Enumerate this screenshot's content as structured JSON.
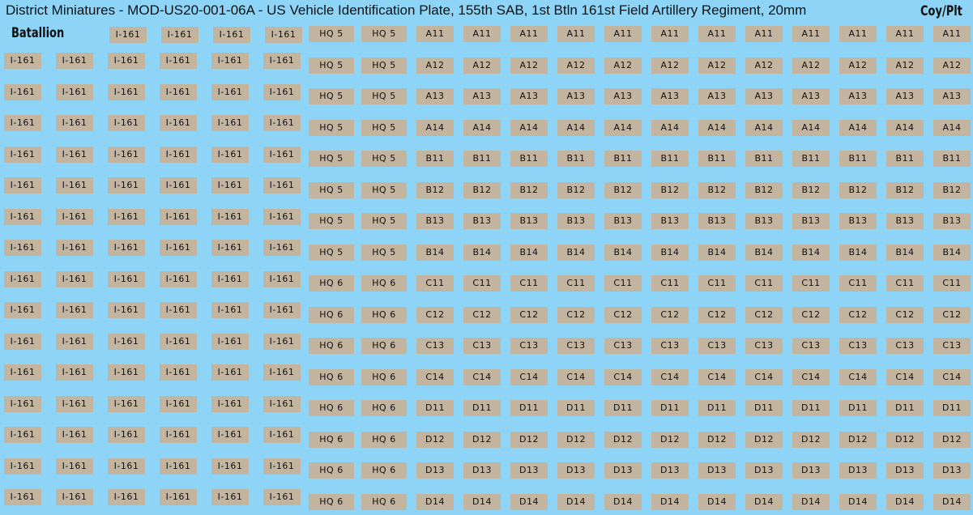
{
  "header": {
    "title": "District Miniatures - MOD-US20-001-06A - US Vehicle Identification Plate, 155th SAB, 1st Btln 161st Field Artillery Regiment, 20mm",
    "batallion_label": "Batallion",
    "coy_plt_label": "Coy/Plt"
  },
  "battalion_plates": {
    "rows": [
      [
        "I-161",
        "I-161",
        "I-161",
        "I-161"
      ],
      [
        "I-161",
        "I-161",
        "I-161",
        "I-161",
        "I-161",
        "I-161"
      ],
      [
        "I-161",
        "I-161",
        "I-161",
        "I-161",
        "I-161",
        "I-161"
      ],
      [
        "I-161",
        "I-161",
        "I-161",
        "I-161",
        "I-161",
        "I-161"
      ],
      [
        "I-161",
        "I-161",
        "I-161",
        "I-161",
        "I-161",
        "I-161"
      ],
      [
        "I-161",
        "I-161",
        "I-161",
        "I-161",
        "I-161",
        "I-161"
      ],
      [
        "I-161",
        "I-161",
        "I-161",
        "I-161",
        "I-161",
        "I-161"
      ],
      [
        "I-161",
        "I-161",
        "I-161",
        "I-161",
        "I-161",
        "I-161"
      ],
      [
        "I-161",
        "I-161",
        "I-161",
        "I-161",
        "I-161",
        "I-161"
      ],
      [
        "I-161",
        "I-161",
        "I-161",
        "I-161",
        "I-161",
        "I-161"
      ],
      [
        "I-161",
        "I-161",
        "I-161",
        "I-161",
        "I-161",
        "I-161"
      ],
      [
        "I-161",
        "I-161",
        "I-161",
        "I-161",
        "I-161",
        "I-161"
      ],
      [
        "I-161",
        "I-161",
        "I-161",
        "I-161",
        "I-161",
        "I-161"
      ],
      [
        "I-161",
        "I-161",
        "I-161",
        "I-161",
        "I-161",
        "I-161"
      ],
      [
        "I-161",
        "I-161",
        "I-161",
        "I-161",
        "I-161",
        "I-161"
      ],
      [
        "I-161",
        "I-161",
        "I-161",
        "I-161",
        "I-161",
        "I-161"
      ]
    ]
  },
  "company_plates": {
    "rows": [
      {
        "hq": [
          "HQ 5",
          "HQ 5"
        ],
        "plates": [
          "A11",
          "A11",
          "A11",
          "A11",
          "A11",
          "A11",
          "A11",
          "A11",
          "A11",
          "A11",
          "A11",
          "A11"
        ]
      },
      {
        "hq": [
          "HQ 5",
          "HQ 5"
        ],
        "plates": [
          "A12",
          "A12",
          "A12",
          "A12",
          "A12",
          "A12",
          "A12",
          "A12",
          "A12",
          "A12",
          "A12",
          "A12"
        ]
      },
      {
        "hq": [
          "HQ 5",
          "HQ 5"
        ],
        "plates": [
          "A13",
          "A13",
          "A13",
          "A13",
          "A13",
          "A13",
          "A13",
          "A13",
          "A13",
          "A13",
          "A13",
          "A13"
        ]
      },
      {
        "hq": [
          "HQ 5",
          "HQ 5"
        ],
        "plates": [
          "A14",
          "A14",
          "A14",
          "A14",
          "A14",
          "A14",
          "A14",
          "A14",
          "A14",
          "A14",
          "A14",
          "A14"
        ]
      },
      {
        "hq": [
          "HQ 5",
          "HQ 5"
        ],
        "plates": [
          "B11",
          "B11",
          "B11",
          "B11",
          "B11",
          "B11",
          "B11",
          "B11",
          "B11",
          "B11",
          "B11",
          "B11"
        ]
      },
      {
        "hq": [
          "HQ 5",
          "HQ 5"
        ],
        "plates": [
          "B12",
          "B12",
          "B12",
          "B12",
          "B12",
          "B12",
          "B12",
          "B12",
          "B12",
          "B12",
          "B12",
          "B12"
        ]
      },
      {
        "hq": [
          "HQ 5",
          "HQ 5"
        ],
        "plates": [
          "B13",
          "B13",
          "B13",
          "B13",
          "B13",
          "B13",
          "B13",
          "B13",
          "B13",
          "B13",
          "B13",
          "B13"
        ]
      },
      {
        "hq": [
          "HQ 5",
          "HQ 5"
        ],
        "plates": [
          "B14",
          "B14",
          "B14",
          "B14",
          "B14",
          "B14",
          "B14",
          "B14",
          "B14",
          "B14",
          "B14",
          "B14"
        ]
      },
      {
        "hq": [
          "HQ 6",
          "HQ 6"
        ],
        "plates": [
          "C11",
          "C11",
          "C11",
          "C11",
          "C11",
          "C11",
          "C11",
          "C11",
          "C11",
          "C11",
          "C11",
          "C11"
        ]
      },
      {
        "hq": [
          "HQ 6",
          "HQ 6"
        ],
        "plates": [
          "C12",
          "C12",
          "C12",
          "C12",
          "C12",
          "C12",
          "C12",
          "C12",
          "C12",
          "C12",
          "C12",
          "C12"
        ]
      },
      {
        "hq": [
          "HQ 6",
          "HQ 6"
        ],
        "plates": [
          "C13",
          "C13",
          "C13",
          "C13",
          "C13",
          "C13",
          "C13",
          "C13",
          "C13",
          "C13",
          "C13",
          "C13"
        ]
      },
      {
        "hq": [
          "HQ 6",
          "HQ 6"
        ],
        "plates": [
          "C14",
          "C14",
          "C14",
          "C14",
          "C14",
          "C14",
          "C14",
          "C14",
          "C14",
          "C14",
          "C14",
          "C14"
        ]
      },
      {
        "hq": [
          "HQ 6",
          "HQ 6"
        ],
        "plates": [
          "D11",
          "D11",
          "D11",
          "D11",
          "D11",
          "D11",
          "D11",
          "D11",
          "D11",
          "D11",
          "D11",
          "D11"
        ]
      },
      {
        "hq": [
          "HQ 6",
          "HQ 6"
        ],
        "plates": [
          "D12",
          "D12",
          "D12",
          "D12",
          "D12",
          "D12",
          "D12",
          "D12",
          "D12",
          "D12",
          "D12",
          "D12"
        ]
      },
      {
        "hq": [
          "HQ 6",
          "HQ 6"
        ],
        "plates": [
          "D13",
          "D13",
          "D13",
          "D13",
          "D13",
          "D13",
          "D13",
          "D13",
          "D13",
          "D13",
          "D13",
          "D13"
        ]
      },
      {
        "hq": [
          "HQ 6",
          "HQ 6"
        ],
        "plates": [
          "D14",
          "D14",
          "D14",
          "D14",
          "D14",
          "D14",
          "D14",
          "D14",
          "D14",
          "D14",
          "D14",
          "D14"
        ]
      }
    ]
  }
}
